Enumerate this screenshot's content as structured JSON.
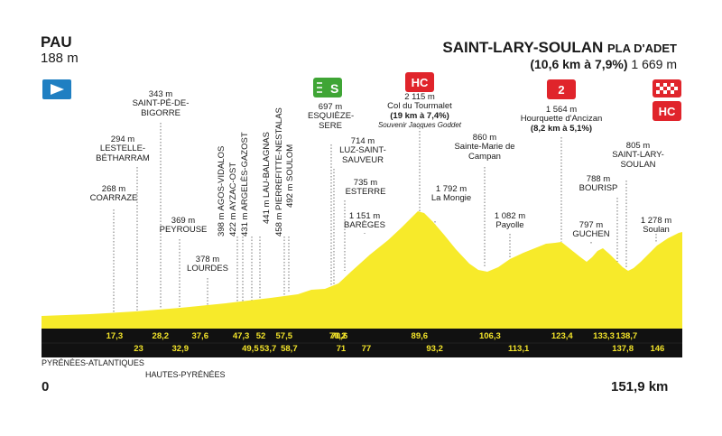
{
  "start": {
    "name": "PAU",
    "altitude": "188 m"
  },
  "finish": {
    "name": "SAINT-LARY-SOULAN",
    "suffix": "PLA D'ADET",
    "climb_info": "(10,6 km à 7,9%)",
    "altitude": "1 669 m"
  },
  "colors": {
    "profile_fill": "#f7ea2a",
    "base_band": "#111111",
    "km_text": "#f3e42a",
    "hc_red": "#e0242b",
    "sprint_green": "#3fa535",
    "start_blue": "#1f7fc2"
  },
  "icons": {
    "start": "start-flag-icon",
    "sprint": "sprint-s-icon",
    "finish": "checkered-flag-icon"
  },
  "climbs": [
    {
      "badge": "HC",
      "name": "Col du Tourmalet",
      "altitude": "2 115 m",
      "detail": "(19 km à 7,4%)",
      "souvenir": "Souvenir Jacques Goddet"
    },
    {
      "badge": "2",
      "name": "Hourquette d'Ancizan",
      "altitude": "1 564 m",
      "detail": "(8,2 km à 5,1%)"
    },
    {
      "badge": "HC",
      "name": "Saint-Lary-Soulan Pla d'Adet"
    }
  ],
  "sprint": {
    "badge": "S",
    "name": "ESQUIÈZE-SERE",
    "altitude": "697 m"
  },
  "places": [
    {
      "name": "COARRAZE",
      "altitude": "268 m"
    },
    {
      "name": "LESTELLE-BÉTHARRAM",
      "altitude": "294 m"
    },
    {
      "name": "SAINT-PÉ-DE-BIGORRE",
      "altitude": "343 m"
    },
    {
      "name": "PEYROUSE",
      "altitude": "369 m"
    },
    {
      "name": "LOURDES",
      "altitude": "378 m"
    },
    {
      "name": "AGOS-VIDALOS",
      "altitude": "398 m"
    },
    {
      "name": "AYZAC-OST",
      "altitude": "422 m"
    },
    {
      "name": "ARGELÈS-GAZOST",
      "altitude": "431 m"
    },
    {
      "name": "LAU-BALAGNAS",
      "altitude": "441 m"
    },
    {
      "name": "PIERREFITTE-NESTALAS",
      "altitude": "458 m"
    },
    {
      "name": "SOULOM",
      "altitude": "492 m"
    },
    {
      "name": "LUZ-SAINT-SAUVEUR",
      "altitude": "714 m"
    },
    {
      "name": "ESTERRE",
      "altitude": "735 m"
    },
    {
      "name": "BARÈGES",
      "altitude": "1 151 m"
    },
    {
      "name": "La Mongie",
      "altitude": "1 792 m"
    },
    {
      "name": "Sainte-Marie de Campan",
      "altitude": "860 m"
    },
    {
      "name": "Payolle",
      "altitude": "1 082 m"
    },
    {
      "name": "GUCHEN",
      "altitude": "797 m"
    },
    {
      "name": "BOURISP",
      "altitude": "788 m"
    },
    {
      "name": "SAINT-LARY-SOULAN",
      "altitude": "805 m"
    },
    {
      "name": "Soulan",
      "altitude": "1 278 m"
    }
  ],
  "km_top": [
    "17,3",
    "28,2",
    "37,6",
    "47,3",
    "52",
    "57,5",
    "70,2",
    "70,6",
    "89,6",
    "106,3",
    "123,4",
    "133,3",
    "138,7"
  ],
  "km_bottom": [
    "23",
    "32,9",
    "49,5",
    "53,7",
    "58,7",
    "71",
    "77",
    "93,2",
    "113,1",
    "137,8",
    "146"
  ],
  "departments": [
    "PYRÉNÉES-ATLANTIQUES",
    "HAUTES-PYRÉNÉES"
  ],
  "distance": {
    "start": "0",
    "end": "151,9 km"
  }
}
